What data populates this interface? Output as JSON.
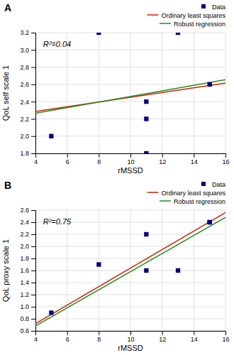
{
  "chart_data": [
    {
      "type": "scatter",
      "title": "A",
      "annotations": [
        "R²=0.04"
      ],
      "xlabel": "rMSSD",
      "ylabel": "QoL self scale 1",
      "xlim": [
        4,
        16
      ],
      "ylim": [
        1.8,
        3.2
      ],
      "xticks": [
        4,
        6,
        8,
        10,
        12,
        14,
        16
      ],
      "yticks": [
        1.8,
        {
          "value": 2,
          "label": "2.0"
        },
        2.2,
        2.4,
        2.6,
        2.8,
        {
          "value": 3,
          "label": "3.0"
        },
        3.2
      ],
      "grid": true,
      "legend": "upper right",
      "series": [
        {
          "name": "Data",
          "type": "scatter",
          "color": "#000080",
          "marker": "square",
          "x": [
            5,
            8,
            11,
            11,
            11,
            13,
            15
          ],
          "values": [
            2.0,
            3.2,
            2.2,
            2.4,
            1.8,
            3.2,
            2.6
          ]
        },
        {
          "name": "Ordinary least squares",
          "type": "line",
          "color": "#cc2200",
          "x": [
            4,
            16
          ],
          "values": [
            2.285,
            2.615
          ]
        },
        {
          "name": "Robust regression",
          "type": "line",
          "color": "#228B22",
          "x": [
            4,
            16
          ],
          "values": [
            2.265,
            2.655
          ]
        }
      ]
    },
    {
      "type": "scatter",
      "title": "B",
      "annotations": [
        "R²=0.75"
      ],
      "xlabel": "rMSSD",
      "ylabel": "QoL proxy scale 1",
      "xlim": [
        4,
        16
      ],
      "ylim": [
        0.6,
        2.6
      ],
      "xticks": [
        4,
        6,
        8,
        10,
        12,
        14,
        16
      ],
      "yticks": [
        0.6,
        0.8,
        {
          "value": 1,
          "label": "1.0"
        },
        1.2,
        1.4,
        1.6,
        1.8,
        {
          "value": 2,
          "label": "2.0"
        },
        2.2,
        2.4,
        2.6
      ],
      "grid": true,
      "legend": "upper right",
      "series": [
        {
          "name": "Data",
          "type": "scatter",
          "color": "#000080",
          "marker": "square",
          "x": [
            5,
            8,
            11,
            11,
            13,
            15,
            15
          ],
          "values": [
            0.9,
            1.7,
            2.2,
            1.6,
            1.6,
            2.4,
            2.4
          ]
        },
        {
          "name": "Ordinary least squares",
          "type": "line",
          "color": "#cc2200",
          "x": [
            4,
            16
          ],
          "values": [
            0.72,
            2.56
          ]
        },
        {
          "name": "Robust regression",
          "type": "line",
          "color": "#228B22",
          "x": [
            4,
            16
          ],
          "values": [
            0.68,
            2.48
          ]
        }
      ]
    }
  ]
}
